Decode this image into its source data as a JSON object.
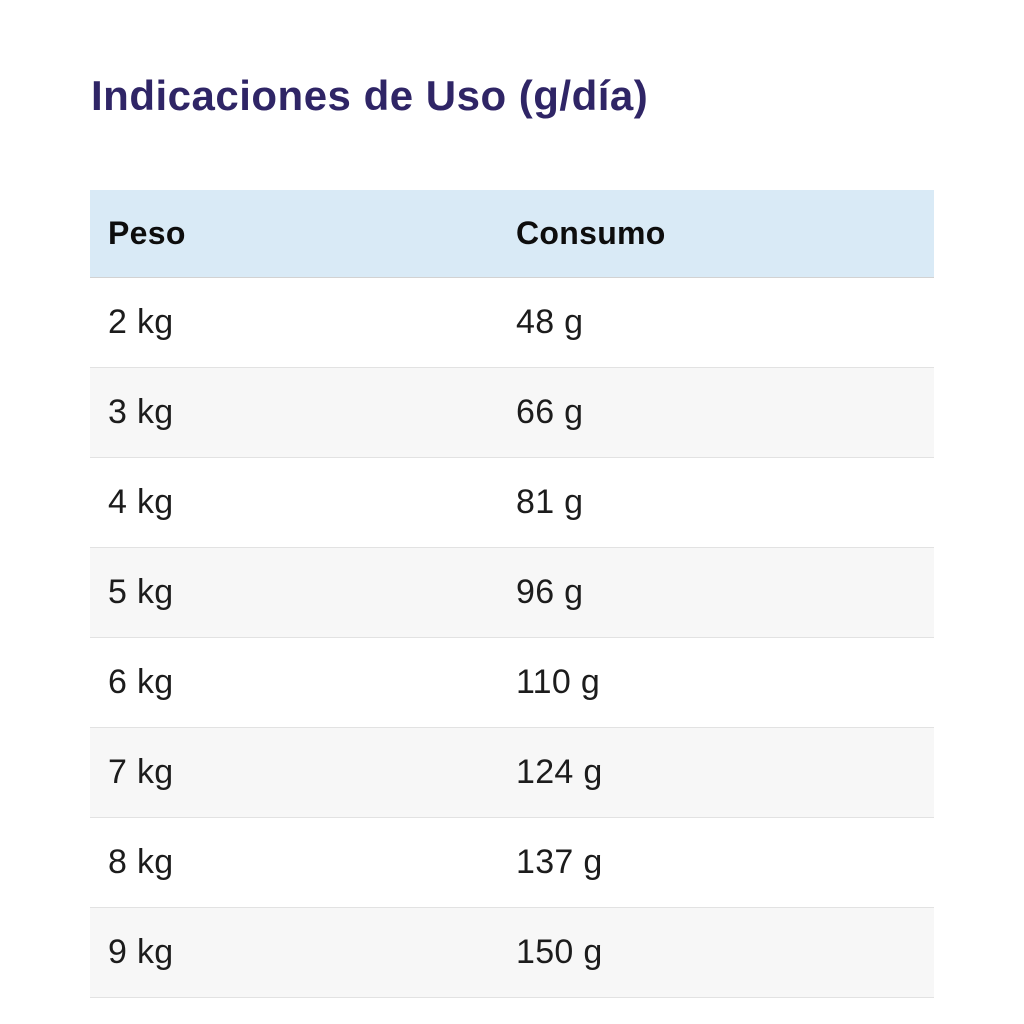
{
  "title": "Indicaciones de Uso (g/día)",
  "colors": {
    "title_text": "#2f2566",
    "header_background": "#d9eaf6",
    "row_alternate_background": "#f7f7f7",
    "row_border": "#e2e2e2",
    "body_text": "#1c1c1c"
  },
  "table": {
    "headers": [
      "Peso",
      "Consumo"
    ],
    "rows": [
      {
        "peso": "2 kg",
        "consumo": "48 g"
      },
      {
        "peso": "3 kg",
        "consumo": "66 g"
      },
      {
        "peso": "4 kg",
        "consumo": "81 g"
      },
      {
        "peso": "5 kg",
        "consumo": "96 g"
      },
      {
        "peso": "6 kg",
        "consumo": "110 g"
      },
      {
        "peso": "7 kg",
        "consumo": "124 g"
      },
      {
        "peso": "8 kg",
        "consumo": "137 g"
      },
      {
        "peso": "9 kg",
        "consumo": "150 g"
      }
    ]
  },
  "chart_data": {
    "type": "table",
    "title": "Indicaciones de Uso (g/día)",
    "columns": [
      "Peso",
      "Consumo"
    ],
    "rows": [
      [
        "2 kg",
        "48 g"
      ],
      [
        "3 kg",
        "66 g"
      ],
      [
        "4 kg",
        "81 g"
      ],
      [
        "5 kg",
        "96 g"
      ],
      [
        "6 kg",
        "110 g"
      ],
      [
        "7 kg",
        "124 g"
      ],
      [
        "8 kg",
        "137 g"
      ],
      [
        "9 kg",
        "150 g"
      ]
    ],
    "weights_kg": [
      2,
      3,
      4,
      5,
      6,
      7,
      8,
      9
    ],
    "consumption_g_per_day": [
      48,
      66,
      81,
      96,
      110,
      124,
      137,
      150
    ]
  }
}
